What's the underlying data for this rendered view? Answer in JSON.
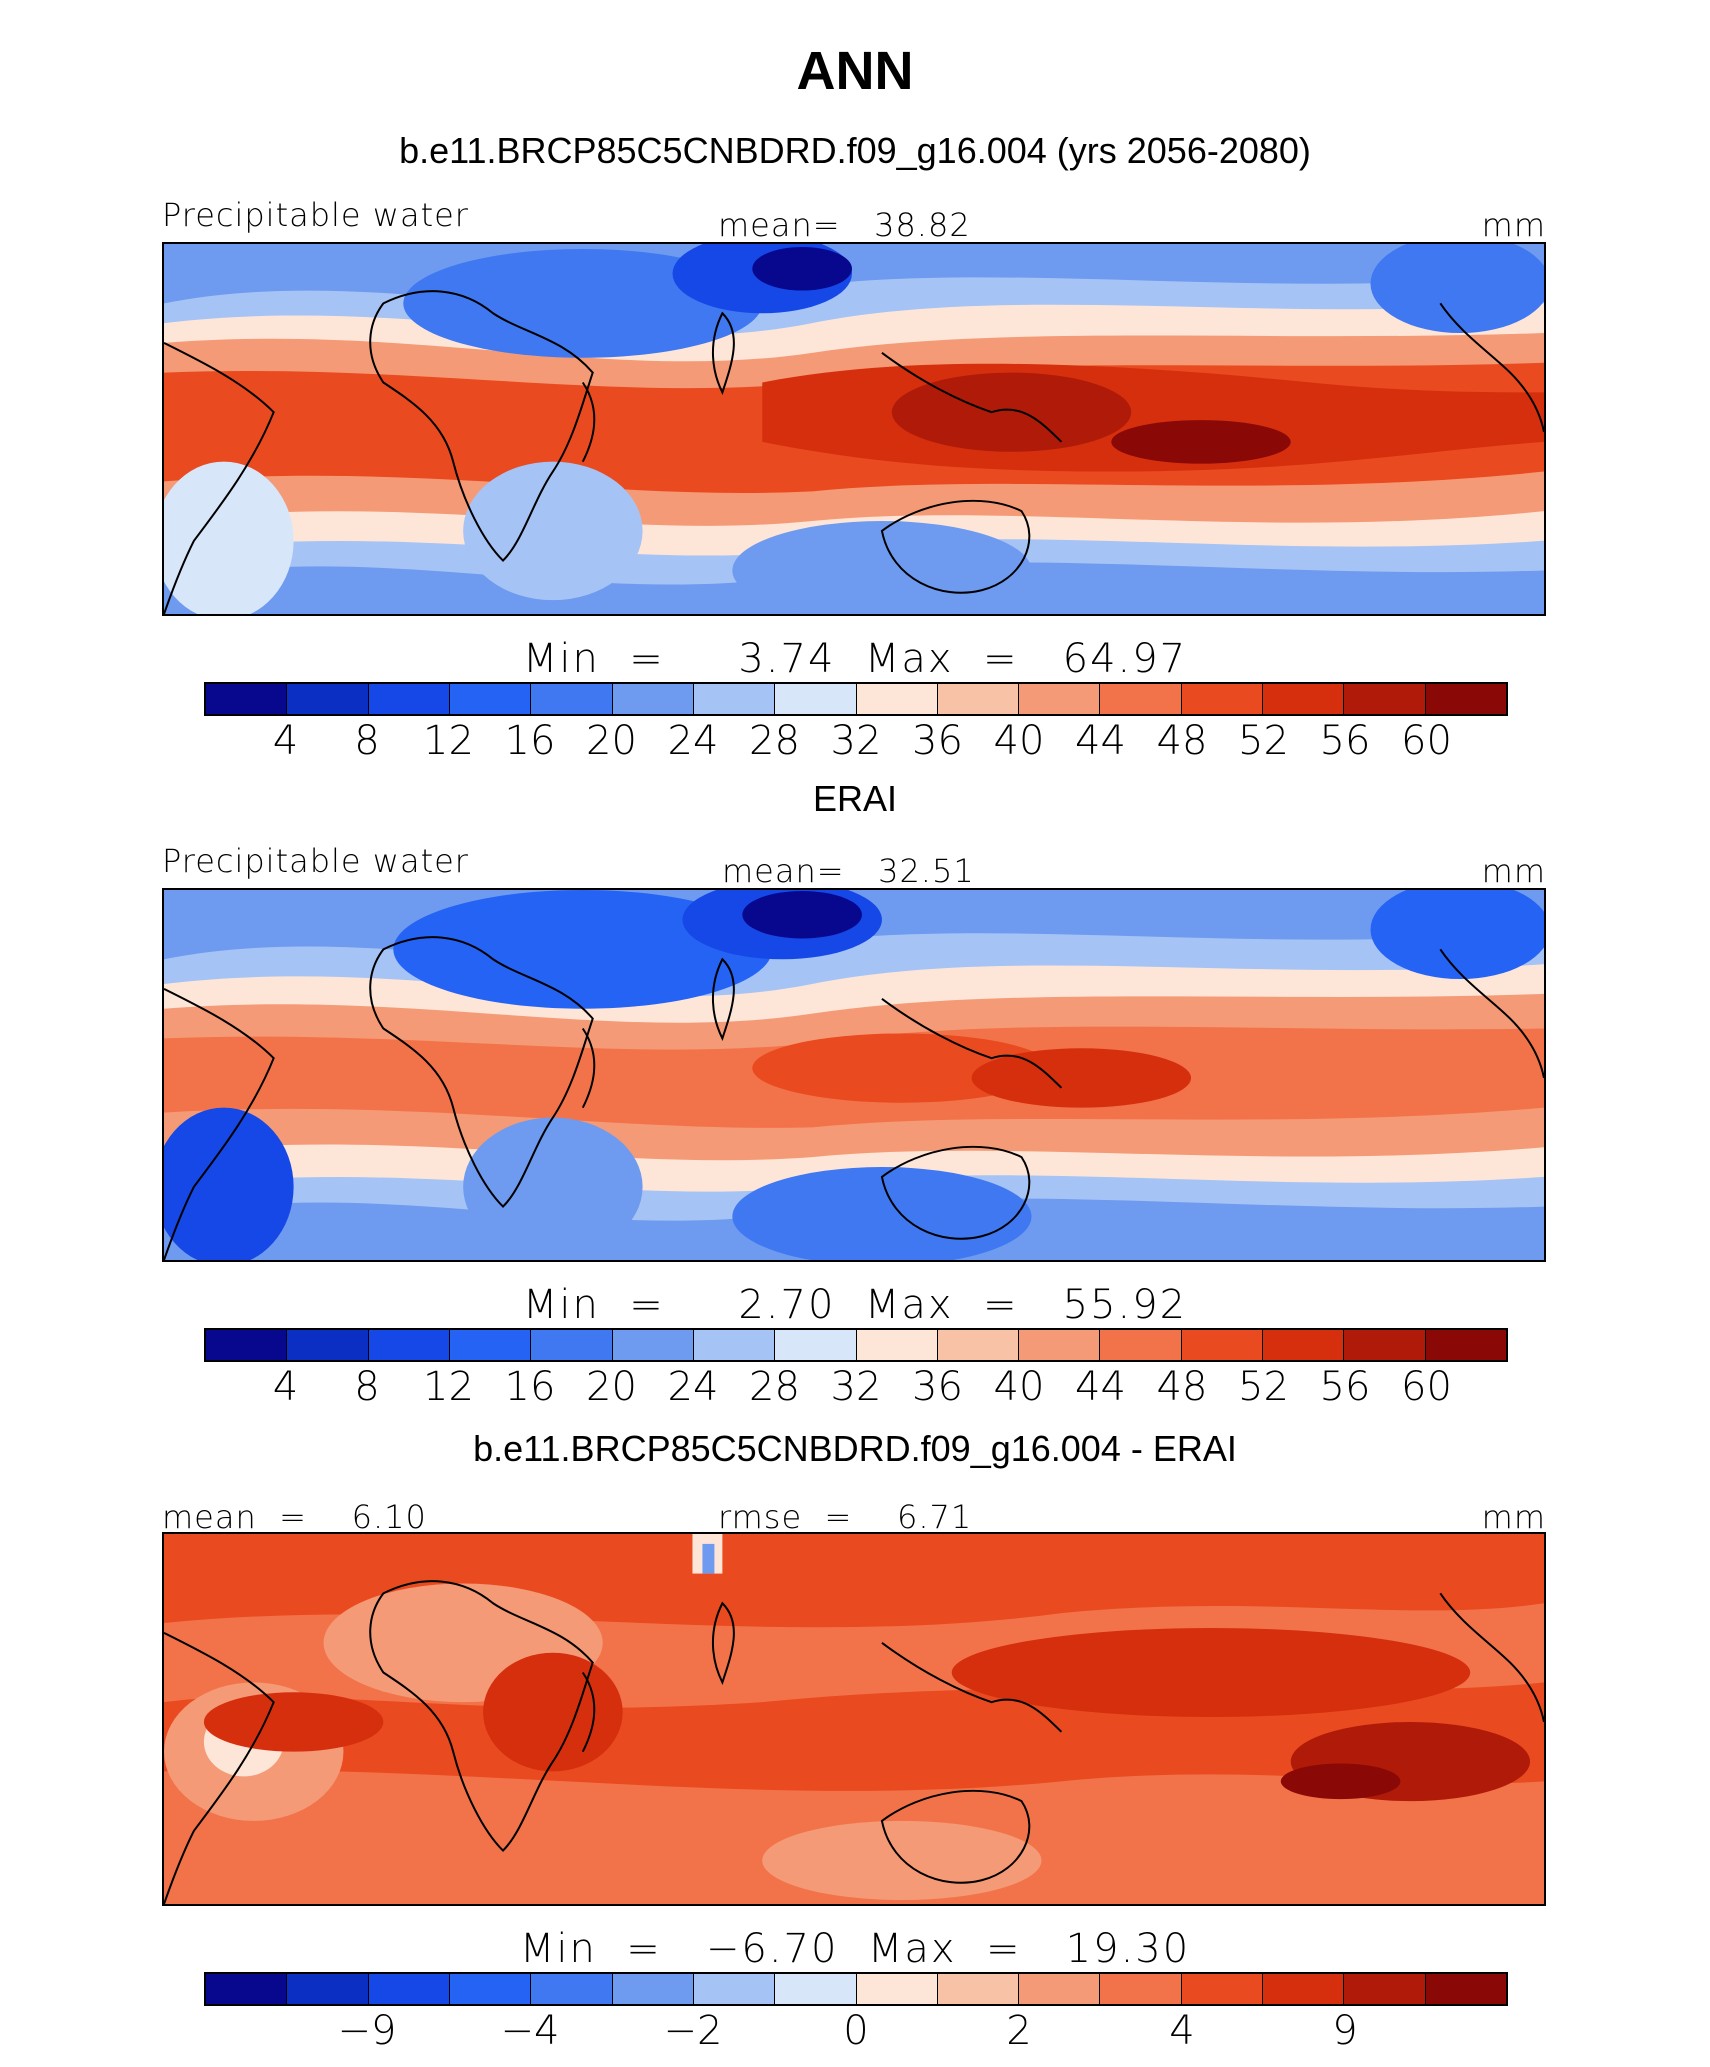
{
  "figure": {
    "title": "ANN"
  },
  "colors": [
    "#08088e",
    "#0a2fc2",
    "#1548e6",
    "#2563f5",
    "#3f78f0",
    "#6e9bef",
    "#a6c3f5",
    "#d8e6fa",
    "#fde6d8",
    "#f8c2a6",
    "#f59a76",
    "#f2734a",
    "#ea4a1f",
    "#d52f0e",
    "#b01a08",
    "#8a0805"
  ],
  "panels": [
    {
      "subtitle": "b.e11.BRCP85C5CNBDRD.f09_g16.004 (yrs 2056-2080)",
      "left_label": "Precipitable water",
      "center_label": "mean=   38.82",
      "right_label": "mm",
      "min_max": "Min  =     3.74  Max  =   64.97",
      "colorbar_ticks": [
        "4",
        "8",
        "12",
        "16",
        "20",
        "24",
        "28",
        "32",
        "36",
        "40",
        "44",
        "48",
        "52",
        "56",
        "60"
      ]
    },
    {
      "subtitle": "ERAI",
      "left_label": "Precipitable water",
      "center_label": "mean=   32.51",
      "right_label": "mm",
      "min_max": "Min  =     2.70  Max  =   55.92",
      "colorbar_ticks": [
        "4",
        "8",
        "12",
        "16",
        "20",
        "24",
        "28",
        "32",
        "36",
        "40",
        "44",
        "48",
        "52",
        "56",
        "60"
      ]
    },
    {
      "subtitle": "b.e11.BRCP85C5CNBDRD.f09_g16.004 - ERAI",
      "left_label": "mean  =    6.10",
      "center_label": "rmse  =    6.71",
      "right_label": "mm",
      "min_max": "Min  =   −6.70  Max  =   19.30",
      "colorbar_ticks": [
        "−9",
        "−4",
        "−2",
        "0",
        "2",
        "4",
        "9"
      ]
    }
  ]
}
